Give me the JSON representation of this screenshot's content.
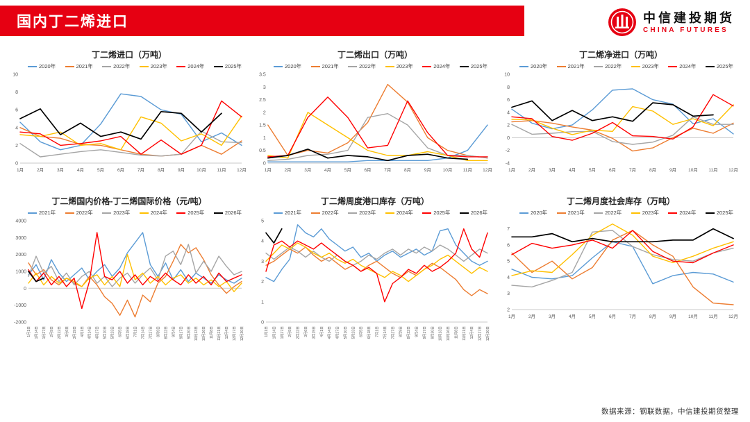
{
  "header": {
    "title": "国内丁二烯进口",
    "brand": {
      "cn": "中信建投期货",
      "en": "CHINA FUTURES"
    }
  },
  "footer": {
    "source": "数据来源：钢联数据，中信建投期货整理"
  },
  "colors": {
    "banner_red": "#E60012",
    "blue": "#5B9BD5",
    "orange": "#ED7D31",
    "gray": "#A5A5A5",
    "yellow": "#FFC000",
    "red": "#FF0000",
    "black": "#000000"
  },
  "chart_data": [
    {
      "type": "line",
      "title": "丁二烯进口（万吨）",
      "ylim": [
        0,
        10
      ],
      "yticks": [
        0,
        2,
        4,
        6,
        8,
        10
      ],
      "x_rotated": false,
      "categories": [
        "1月",
        "2月",
        "3月",
        "4月",
        "5月",
        "6月",
        "7月",
        "8月",
        "9月",
        "10月",
        "11月",
        "12月"
      ],
      "series": [
        {
          "name": "2020年",
          "color": "#5B9BD5",
          "values": [
            4.6,
            2.4,
            1.5,
            2.0,
            4.4,
            7.8,
            7.5,
            6.0,
            5.5,
            2.4,
            3.4,
            2.0
          ]
        },
        {
          "name": "2021年",
          "color": "#ED7D31",
          "values": [
            4.0,
            3.0,
            2.8,
            2.1,
            2.0,
            1.5,
            1.0,
            0.8,
            1.0,
            2.0,
            1.0,
            2.5
          ]
        },
        {
          "name": "2022年",
          "color": "#A5A5A5",
          "values": [
            2.2,
            0.7,
            1.0,
            1.3,
            1.5,
            1.2,
            0.9,
            0.8,
            1.0,
            3.6,
            2.4,
            2.3
          ]
        },
        {
          "name": "2023年",
          "color": "#FFC000",
          "values": [
            3.2,
            3.0,
            3.5,
            2.0,
            2.2,
            1.5,
            5.2,
            4.5,
            2.5,
            3.3,
            2.0,
            5.3
          ]
        },
        {
          "name": "2024年",
          "color": "#FF0000",
          "values": [
            3.5,
            3.3,
            2.0,
            2.2,
            2.5,
            3.0,
            1.0,
            2.6,
            1.0,
            2.0,
            7.0,
            5.2
          ]
        },
        {
          "name": "2025年",
          "color": "#000000",
          "values": [
            5.0,
            6.1,
            3.2,
            4.5,
            3.0,
            3.5,
            2.7,
            5.8,
            5.6,
            3.5,
            5.6,
            null
          ]
        }
      ]
    },
    {
      "type": "line",
      "title": "丁二烯出口（万吨）",
      "ylim": [
        0,
        3.5
      ],
      "yticks": [
        0,
        0.5,
        1,
        1.5,
        2,
        2.5,
        3,
        3.5
      ],
      "x_rotated": false,
      "categories": [
        "1月",
        "2月",
        "3月",
        "4月",
        "5月",
        "6月",
        "7月",
        "8月",
        "9月",
        "10月",
        "11月",
        "12月"
      ],
      "series": [
        {
          "name": "2020年",
          "color": "#5B9BD5",
          "values": [
            0.05,
            0.05,
            0.05,
            0.05,
            0.05,
            0.1,
            0.1,
            0.1,
            0.1,
            0.2,
            0.5,
            1.5
          ]
        },
        {
          "name": "2021年",
          "color": "#ED7D31",
          "values": [
            1.5,
            0.3,
            0.5,
            0.4,
            0.8,
            1.6,
            3.1,
            2.4,
            1.0,
            0.5,
            0.3,
            0.2
          ]
        },
        {
          "name": "2022年",
          "color": "#A5A5A5",
          "values": [
            0.1,
            0.15,
            0.3,
            0.35,
            0.5,
            1.8,
            1.95,
            1.5,
            0.6,
            0.3,
            0.3,
            0.2
          ]
        },
        {
          "name": "2023年",
          "color": "#FFC000",
          "values": [
            0.3,
            0.2,
            2.0,
            1.5,
            1.0,
            0.5,
            0.3,
            0.3,
            0.45,
            0.3,
            0.1,
            0.1
          ]
        },
        {
          "name": "2024年",
          "color": "#FF0000",
          "values": [
            0.25,
            0.3,
            1.8,
            2.6,
            1.8,
            0.6,
            0.7,
            2.45,
            1.2,
            0.3,
            0.25,
            0.25
          ]
        },
        {
          "name": "2025年",
          "color": "#000000",
          "values": [
            0.2,
            0.3,
            0.55,
            0.2,
            0.3,
            0.25,
            0.1,
            0.3,
            0.35,
            0.2,
            0.15,
            null
          ]
        }
      ]
    },
    {
      "type": "line",
      "title": "丁二烯净进口（万吨）",
      "ylim": [
        -4,
        10
      ],
      "yticks": [
        -4,
        -2,
        0,
        2,
        4,
        6,
        8,
        10
      ],
      "x_rotated": false,
      "categories": [
        "1月",
        "2月",
        "3月",
        "4月",
        "5月",
        "6月",
        "7月",
        "8月",
        "9月",
        "10月",
        "11月",
        "12月"
      ],
      "series": [
        {
          "name": "2020年",
          "color": "#5B9BD5",
          "values": [
            4.5,
            2.3,
            1.4,
            2.0,
            4.4,
            7.5,
            7.7,
            6.0,
            5.3,
            2.2,
            3.0,
            0.6
          ]
        },
        {
          "name": "2021年",
          "color": "#ED7D31",
          "values": [
            2.5,
            2.7,
            2.3,
            1.7,
            1.2,
            -0.1,
            -2.1,
            -1.6,
            0.0,
            1.5,
            0.7,
            2.3
          ]
        },
        {
          "name": "2022年",
          "color": "#A5A5A5",
          "values": [
            2.1,
            0.55,
            0.7,
            0.95,
            1.0,
            -0.6,
            -1.05,
            -0.7,
            0.4,
            3.3,
            2.1,
            2.1
          ]
        },
        {
          "name": "2023年",
          "color": "#FFC000",
          "values": [
            2.9,
            2.8,
            1.5,
            0.5,
            1.2,
            1.0,
            4.9,
            4.2,
            2.1,
            3.0,
            1.9,
            5.2
          ]
        },
        {
          "name": "2024年",
          "color": "#FF0000",
          "values": [
            3.3,
            3.0,
            0.2,
            -0.4,
            0.7,
            2.4,
            0.3,
            0.2,
            -0.2,
            1.7,
            6.8,
            5.0
          ]
        },
        {
          "name": "2025年",
          "color": "#000000",
          "values": [
            4.8,
            5.8,
            2.7,
            4.3,
            2.7,
            3.3,
            2.6,
            5.5,
            5.2,
            3.4,
            3.6,
            null
          ]
        }
      ]
    },
    {
      "type": "line",
      "title": "丁二烯国内价格-丁二烯国际价格（元/吨）",
      "ylim": [
        -2000,
        4000
      ],
      "yticks": [
        -2000,
        -1000,
        0,
        1000,
        2000,
        3000,
        4000
      ],
      "x_rotated": true,
      "categories": [
        "1月1日",
        "1月14日",
        "1月27日",
        "2月9日",
        "2月22日",
        "3月6日",
        "3月19日",
        "4月1日",
        "4月14日",
        "4月27日",
        "5月10日",
        "5月23日",
        "6月5日",
        "6月18日",
        "7月1日",
        "7月14日",
        "7月27日",
        "8月9日",
        "8月22日",
        "9月4日",
        "9月17日",
        "9月30日",
        "10月13日",
        "10月26日",
        "11月8日",
        "11月21日",
        "12月4日",
        "12月17日",
        "12月30日"
      ],
      "series": [
        {
          "name": "2021年",
          "color": "#5B9BD5",
          "values": [
            800,
            1400,
            500,
            1700,
            900,
            400,
            800,
            1200,
            500,
            1000,
            1400,
            700,
            1200,
            2100,
            2700,
            3300,
            1400,
            700,
            1500,
            500,
            1100,
            400,
            900,
            600,
            300,
            800,
            500,
            300,
            600
          ]
        },
        {
          "name": "2022年",
          "color": "#ED7D31",
          "values": [
            1500,
            800,
            1100,
            500,
            200,
            600,
            300,
            100,
            700,
            200,
            -500,
            -900,
            -1600,
            -700,
            -1700,
            -400,
            -800,
            300,
            700,
            1600,
            2600,
            2100,
            2400,
            1700,
            800,
            200,
            -300,
            100,
            400
          ]
        },
        {
          "name": "2023年",
          "color": "#A5A5A5",
          "values": [
            700,
            1900,
            900,
            1300,
            400,
            900,
            200,
            700,
            1000,
            300,
            700,
            100,
            600,
            900,
            300,
            800,
            1200,
            500,
            1900,
            2200,
            1400,
            2600,
            900,
            1600,
            1000,
            1900,
            1300,
            800,
            1000
          ]
        },
        {
          "name": "2024年",
          "color": "#FFC000",
          "values": [
            300,
            900,
            200,
            700,
            300,
            600,
            400,
            100,
            600,
            800,
            200,
            700,
            100,
            2000,
            500,
            900,
            300,
            700,
            200,
            600,
            800,
            300,
            600,
            200,
            500,
            100,
            400,
            -200,
            300
          ]
        },
        {
          "name": "2025年",
          "color": "#FF0000",
          "values": [
            1100,
            400,
            900,
            200,
            700,
            100,
            600,
            -1200,
            400,
            3300,
            700,
            500,
            1000,
            300,
            800,
            200,
            700,
            400,
            900,
            500,
            200,
            800,
            300,
            700,
            200,
            900,
            400,
            600,
            800
          ]
        },
        {
          "name": "2026年",
          "color": "#000000",
          "values": [
            1000,
            400,
            600,
            null,
            null,
            null,
            null,
            null,
            null,
            null,
            null,
            null,
            null,
            null,
            null,
            null,
            null,
            null,
            null,
            null,
            null,
            null,
            null,
            null,
            null,
            null,
            null,
            null,
            null
          ]
        }
      ]
    },
    {
      "type": "line",
      "title": "丁二烯周度港口库存（万吨）",
      "ylim": [
        0,
        5
      ],
      "yticks": [
        0,
        1,
        2,
        3,
        4,
        5
      ],
      "x_rotated": true,
      "categories": [
        "1月1日",
        "1月14日",
        "1月27日",
        "2月9日",
        "2月22日",
        "3月6日",
        "3月19日",
        "4月1日",
        "4月14日",
        "4月27日",
        "5月10日",
        "5月23日",
        "6月5日",
        "6月18日",
        "7月1日",
        "7月14日",
        "7月27日",
        "8月9日",
        "8月22日",
        "9月4日",
        "9月17日",
        "9月30日",
        "10月13日",
        "10月26日",
        "11月8日",
        "11月21日",
        "12月4日",
        "12月17日",
        "12月30日"
      ],
      "series": [
        {
          "name": "2021年",
          "color": "#5B9BD5",
          "values": [
            2.2,
            2.0,
            2.6,
            3.1,
            4.8,
            4.4,
            4.2,
            4.6,
            4.1,
            3.8,
            3.5,
            3.7,
            3.2,
            3.4,
            3.0,
            3.3,
            3.5,
            3.2,
            3.4,
            3.6,
            3.3,
            3.5,
            4.5,
            4.6,
            3.8,
            3.4,
            3.0,
            2.8,
            3.0
          ]
        },
        {
          "name": "2022年",
          "color": "#ED7D31",
          "values": [
            2.8,
            3.0,
            3.3,
            3.6,
            3.4,
            3.7,
            3.3,
            3.0,
            3.2,
            2.9,
            2.6,
            2.8,
            2.5,
            2.8,
            3.0,
            2.7,
            2.4,
            2.2,
            2.5,
            2.3,
            2.6,
            2.9,
            2.7,
            2.4,
            2.1,
            1.6,
            1.3,
            1.6,
            1.4
          ]
        },
        {
          "name": "2023年",
          "color": "#A5A5A5",
          "values": [
            3.4,
            3.1,
            3.4,
            3.7,
            3.5,
            3.2,
            3.5,
            3.2,
            3.0,
            3.3,
            3.0,
            2.8,
            3.0,
            3.3,
            3.1,
            3.4,
            3.6,
            3.3,
            3.6,
            3.4,
            3.7,
            3.5,
            3.8,
            3.6,
            3.3,
            3.0,
            3.3,
            3.6,
            3.4
          ]
        },
        {
          "name": "2024年",
          "color": "#FFC000",
          "values": [
            3.0,
            3.4,
            3.8,
            3.6,
            3.9,
            3.7,
            3.4,
            3.2,
            3.4,
            3.1,
            2.9,
            3.1,
            2.8,
            2.6,
            2.4,
            2.2,
            2.5,
            2.3,
            2.0,
            2.3,
            2.6,
            2.8,
            3.1,
            3.3,
            3.0,
            2.7,
            2.4,
            2.7,
            2.5
          ]
        },
        {
          "name": "2025年",
          "color": "#FF0000",
          "values": [
            2.5,
            3.8,
            4.0,
            3.7,
            4.0,
            3.8,
            3.6,
            3.9,
            3.6,
            3.3,
            3.0,
            2.8,
            2.5,
            2.7,
            2.4,
            1.0,
            1.9,
            2.2,
            2.6,
            2.4,
            2.8,
            2.5,
            2.7,
            3.0,
            3.4,
            4.6,
            3.6,
            3.2,
            4.4
          ]
        },
        {
          "name": "2026年",
          "color": "#000000",
          "values": [
            4.4,
            3.9,
            4.6,
            null,
            null,
            null,
            null,
            null,
            null,
            null,
            null,
            null,
            null,
            null,
            null,
            null,
            null,
            null,
            null,
            null,
            null,
            null,
            null,
            null,
            null,
            null,
            null,
            null,
            null
          ]
        }
      ]
    },
    {
      "type": "line",
      "title": "丁二烯月度社会库存（万吨）",
      "ylim": [
        2,
        7.5
      ],
      "yticks": [
        2,
        3,
        4,
        5,
        6,
        7
      ],
      "x_rotated": false,
      "categories": [
        "1月",
        "2月",
        "3月",
        "4月",
        "5月",
        "6月",
        "7月",
        "8月",
        "9月",
        "10月",
        "11月",
        "12月"
      ],
      "series": [
        {
          "name": "2020年",
          "color": "#5B9BD5",
          "values": [
            4.5,
            4.0,
            3.9,
            4.1,
            5.2,
            6.2,
            5.9,
            3.6,
            4.1,
            4.3,
            4.2,
            3.7
          ]
        },
        {
          "name": "2021年",
          "color": "#ED7D31",
          "values": [
            5.5,
            4.3,
            5.0,
            3.9,
            4.6,
            6.3,
            6.9,
            6.0,
            5.3,
            3.4,
            2.4,
            2.3
          ]
        },
        {
          "name": "2022年",
          "color": "#A5A5A5",
          "values": [
            3.5,
            3.4,
            3.8,
            4.3,
            6.8,
            6.9,
            5.9,
            5.4,
            5.1,
            5.0,
            5.5,
            5.8
          ]
        },
        {
          "name": "2023年",
          "color": "#FFC000",
          "values": [
            4.1,
            4.4,
            4.3,
            5.4,
            6.6,
            7.3,
            6.6,
            5.3,
            4.9,
            5.3,
            5.8,
            6.2
          ]
        },
        {
          "name": "2024年",
          "color": "#FF0000",
          "values": [
            5.4,
            6.1,
            5.8,
            6.0,
            6.3,
            5.8,
            6.9,
            5.6,
            5.0,
            4.9,
            5.5,
            6.0
          ]
        },
        {
          "name": "2025年",
          "color": "#000000",
          "values": [
            6.5,
            6.5,
            6.7,
            6.2,
            6.4,
            6.2,
            6.2,
            6.2,
            6.3,
            6.3,
            7.0,
            6.4
          ]
        }
      ]
    }
  ]
}
